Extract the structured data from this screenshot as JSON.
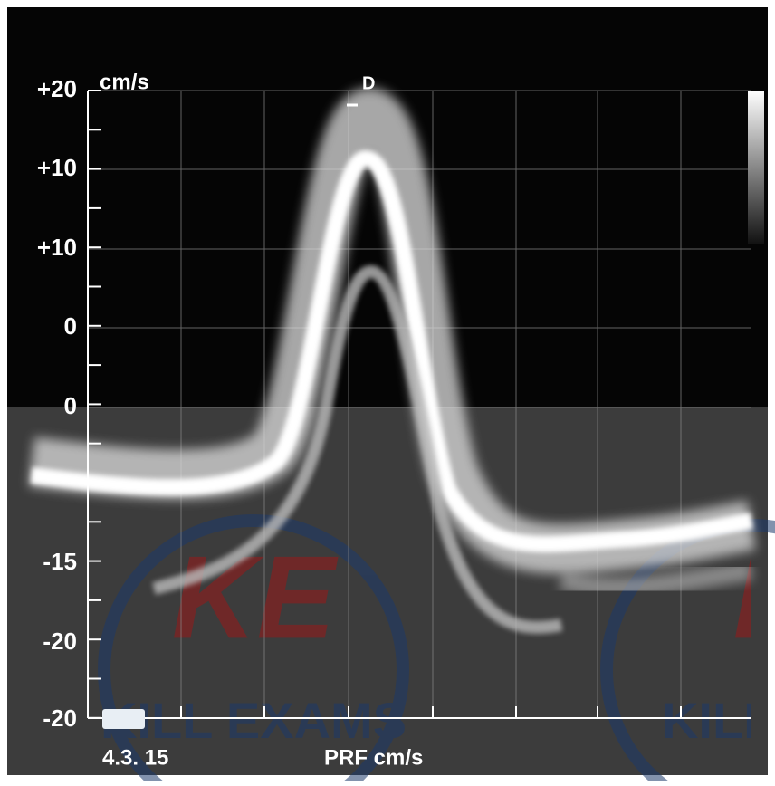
{
  "scale_labels": [
    "+20",
    "+10",
    "+10",
    "0",
    "0",
    "-15",
    "-20",
    "-20"
  ],
  "unit": "cm/s",
  "marker": "D",
  "date": "4.3. 15",
  "footer": "PRF cm/s",
  "watermark": {
    "logo": "KE",
    "text": "KILL EXAMS"
  }
}
